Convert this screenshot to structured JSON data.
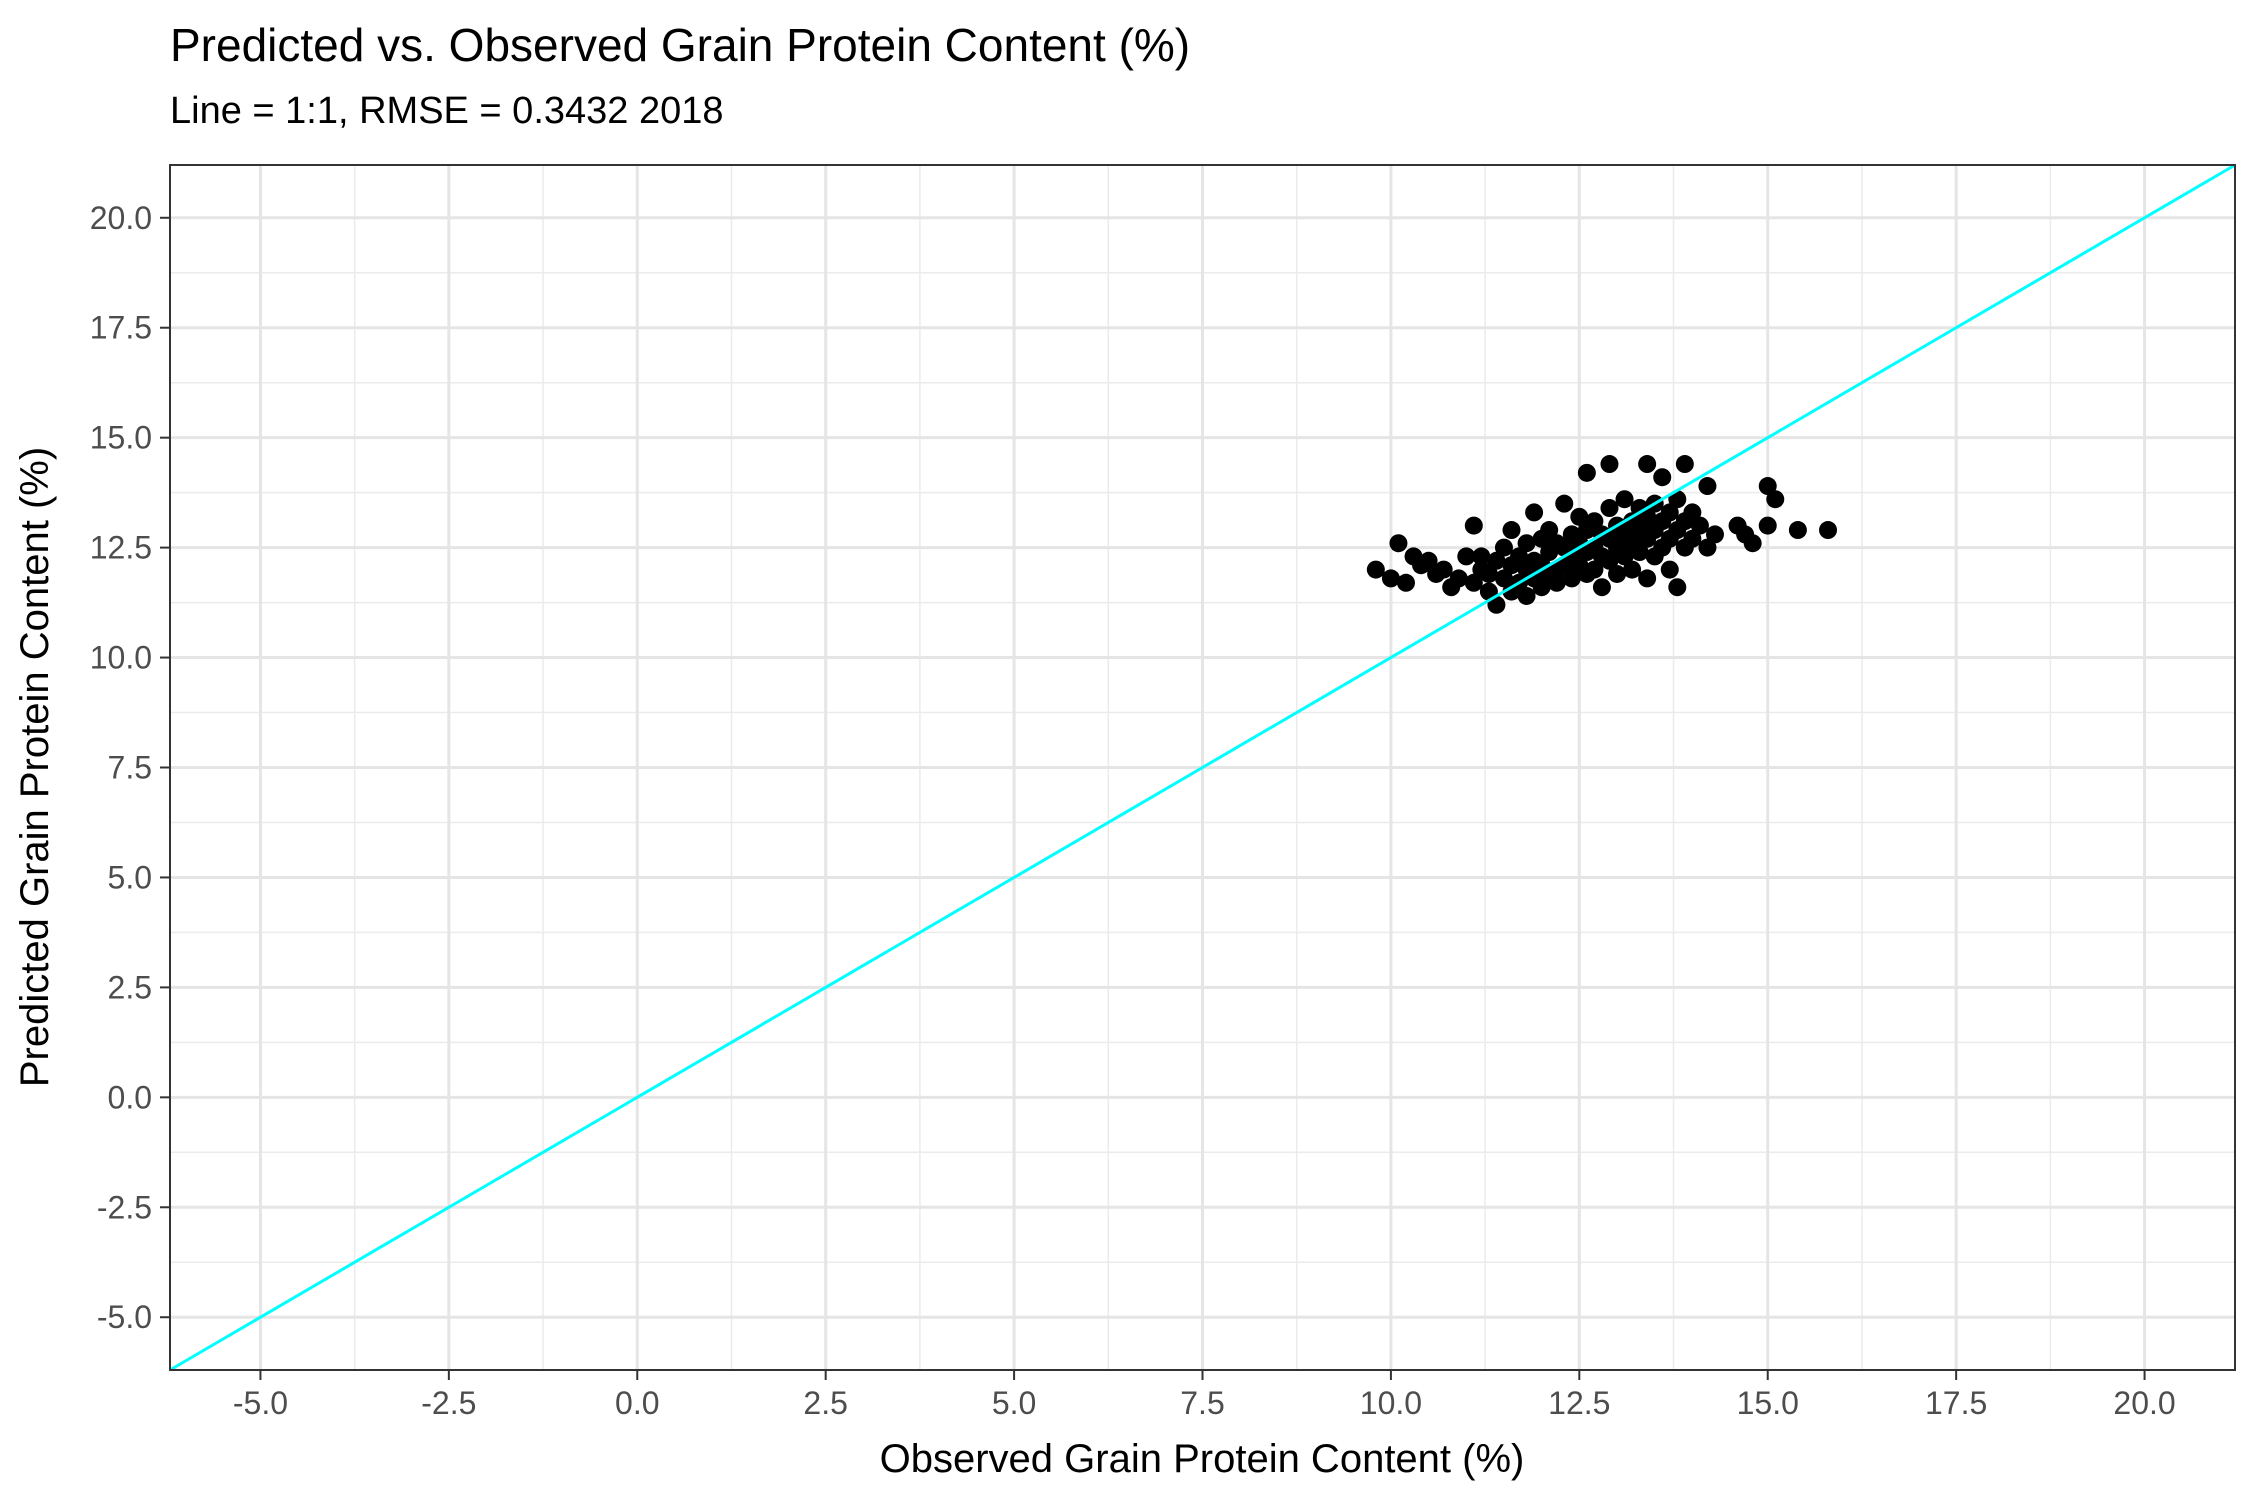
{
  "chart_data": {
    "type": "scatter",
    "title": "Predicted vs. Observed Grain Protein Content (%)",
    "subtitle": "Line = 1:1, RMSE = 0.3432   2018",
    "xlabel": "Observed Grain Protein Content (%)",
    "ylabel": "Predicted Grain Protein Content (%)",
    "xlim": [
      -6.2,
      21.2
    ],
    "ylim": [
      -6.2,
      21.2
    ],
    "x_ticks": [
      -5.0,
      -2.5,
      0.0,
      2.5,
      5.0,
      7.5,
      10.0,
      12.5,
      15.0,
      17.5,
      20.0
    ],
    "y_ticks": [
      -5.0,
      -2.5,
      0.0,
      2.5,
      5.0,
      7.5,
      10.0,
      12.5,
      15.0,
      17.5,
      20.0
    ],
    "x_tick_labels": [
      "-5.0",
      "-2.5",
      "0.0",
      "2.5",
      "5.0",
      "7.5",
      "10.0",
      "12.5",
      "15.0",
      "17.5",
      "20.0"
    ],
    "y_tick_labels": [
      "-5.0",
      "-2.5",
      "0.0",
      "2.5",
      "5.0",
      "7.5",
      "10.0",
      "12.5",
      "15.0",
      "17.5",
      "20.0"
    ],
    "grid": true,
    "reference_line": {
      "slope": 1,
      "intercept": 0,
      "color": "#00FFFF"
    },
    "point_color": "#000000",
    "points": [
      [
        9.8,
        12.0
      ],
      [
        10.0,
        11.8
      ],
      [
        10.1,
        12.6
      ],
      [
        10.2,
        11.7
      ],
      [
        10.3,
        12.3
      ],
      [
        10.4,
        12.1
      ],
      [
        10.5,
        12.2
      ],
      [
        10.6,
        11.9
      ],
      [
        10.7,
        12.0
      ],
      [
        10.8,
        11.6
      ],
      [
        10.9,
        11.8
      ],
      [
        11.0,
        12.3
      ],
      [
        11.1,
        13.0
      ],
      [
        11.1,
        11.7
      ],
      [
        11.2,
        12.0
      ],
      [
        11.2,
        12.3
      ],
      [
        11.3,
        11.5
      ],
      [
        11.3,
        11.9
      ],
      [
        11.4,
        12.2
      ],
      [
        11.4,
        11.2
      ],
      [
        11.5,
        12.5
      ],
      [
        11.5,
        11.8
      ],
      [
        11.6,
        12.9
      ],
      [
        11.6,
        12.1
      ],
      [
        11.6,
        11.5
      ],
      [
        11.7,
        12.3
      ],
      [
        11.7,
        11.7
      ],
      [
        11.8,
        12.6
      ],
      [
        11.8,
        12.0
      ],
      [
        11.8,
        11.4
      ],
      [
        11.9,
        13.3
      ],
      [
        11.9,
        12.2
      ],
      [
        11.9,
        11.8
      ],
      [
        12.0,
        12.7
      ],
      [
        12.0,
        12.1
      ],
      [
        12.0,
        11.6
      ],
      [
        12.1,
        12.9
      ],
      [
        12.1,
        12.4
      ],
      [
        12.1,
        11.9
      ],
      [
        12.2,
        12.6
      ],
      [
        12.2,
        12.0
      ],
      [
        12.2,
        11.7
      ],
      [
        12.3,
        13.5
      ],
      [
        12.3,
        12.5
      ],
      [
        12.3,
        12.1
      ],
      [
        12.4,
        12.8
      ],
      [
        12.4,
        12.3
      ],
      [
        12.4,
        11.8
      ],
      [
        12.5,
        13.2
      ],
      [
        12.5,
        12.6
      ],
      [
        12.5,
        12.1
      ],
      [
        12.6,
        14.2
      ],
      [
        12.6,
        12.9
      ],
      [
        12.6,
        12.4
      ],
      [
        12.6,
        11.9
      ],
      [
        12.7,
        13.1
      ],
      [
        12.7,
        12.5
      ],
      [
        12.7,
        12.0
      ],
      [
        12.8,
        12.8
      ],
      [
        12.8,
        12.3
      ],
      [
        12.8,
        11.6
      ],
      [
        12.9,
        14.4
      ],
      [
        12.9,
        13.4
      ],
      [
        12.9,
        12.7
      ],
      [
        12.9,
        12.2
      ],
      [
        13.0,
        13.0
      ],
      [
        13.0,
        12.5
      ],
      [
        13.0,
        11.9
      ],
      [
        13.1,
        13.6
      ],
      [
        13.1,
        12.8
      ],
      [
        13.1,
        12.3
      ],
      [
        13.2,
        13.1
      ],
      [
        13.2,
        12.6
      ],
      [
        13.2,
        12.0
      ],
      [
        13.3,
        13.4
      ],
      [
        13.3,
        12.9
      ],
      [
        13.3,
        12.4
      ],
      [
        13.4,
        14.4
      ],
      [
        13.4,
        13.2
      ],
      [
        13.4,
        12.7
      ],
      [
        13.4,
        11.8
      ],
      [
        13.5,
        13.5
      ],
      [
        13.5,
        12.9
      ],
      [
        13.5,
        12.3
      ],
      [
        13.6,
        14.1
      ],
      [
        13.6,
        13.1
      ],
      [
        13.6,
        12.5
      ],
      [
        13.7,
        13.3
      ],
      [
        13.7,
        12.7
      ],
      [
        13.7,
        12.0
      ],
      [
        13.8,
        13.6
      ],
      [
        13.8,
        12.9
      ],
      [
        13.8,
        11.6
      ],
      [
        13.9,
        14.4
      ],
      [
        13.9,
        13.1
      ],
      [
        13.9,
        12.5
      ],
      [
        14.0,
        13.3
      ],
      [
        14.0,
        12.7
      ],
      [
        14.1,
        13.0
      ],
      [
        14.2,
        13.9
      ],
      [
        14.2,
        12.5
      ],
      [
        14.3,
        12.8
      ],
      [
        14.6,
        13.0
      ],
      [
        14.7,
        12.8
      ],
      [
        14.8,
        12.6
      ],
      [
        15.0,
        13.0
      ],
      [
        15.0,
        13.9
      ],
      [
        15.1,
        13.6
      ],
      [
        15.4,
        12.9
      ],
      [
        15.8,
        12.9
      ]
    ]
  }
}
